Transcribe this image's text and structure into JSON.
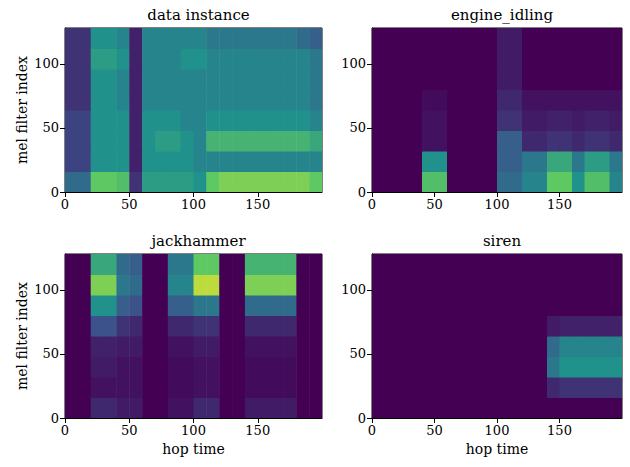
{
  "chart_data": [
    {
      "type": "heatmap",
      "title": "data instance",
      "ylabel": "mel filter index",
      "xlim": [
        0,
        200
      ],
      "ylim": [
        0,
        128
      ],
      "xticks": [
        0,
        50,
        100,
        150
      ],
      "yticks": [
        0,
        50,
        100
      ],
      "clim": [
        0,
        1
      ],
      "x_bins": [
        0,
        10,
        20,
        30,
        40,
        50,
        60,
        70,
        80,
        90,
        100,
        110,
        120,
        130,
        140,
        150,
        160,
        170,
        180,
        190,
        200
      ],
      "y_bins": [
        0,
        16,
        32,
        48,
        64,
        80,
        96,
        112,
        128
      ],
      "cells": [
        [
          0.35,
          0.35,
          0.75,
          0.75,
          0.7,
          0.15,
          0.55,
          0.55,
          0.55,
          0.55,
          0.5,
          0.75,
          0.8,
          0.8,
          0.8,
          0.8,
          0.8,
          0.8,
          0.8,
          0.75
        ],
        [
          0.2,
          0.2,
          0.5,
          0.5,
          0.5,
          0.1,
          0.5,
          0.5,
          0.5,
          0.5,
          0.45,
          0.45,
          0.45,
          0.45,
          0.45,
          0.45,
          0.45,
          0.45,
          0.45,
          0.45
        ],
        [
          0.2,
          0.2,
          0.5,
          0.5,
          0.5,
          0.1,
          0.5,
          0.55,
          0.55,
          0.5,
          0.45,
          0.65,
          0.65,
          0.65,
          0.65,
          0.65,
          0.65,
          0.65,
          0.65,
          0.6
        ],
        [
          0.2,
          0.2,
          0.5,
          0.5,
          0.5,
          0.1,
          0.5,
          0.5,
          0.5,
          0.45,
          0.45,
          0.5,
          0.5,
          0.5,
          0.5,
          0.5,
          0.5,
          0.5,
          0.5,
          0.45
        ],
        [
          0.15,
          0.15,
          0.5,
          0.5,
          0.45,
          0.1,
          0.45,
          0.45,
          0.45,
          0.45,
          0.45,
          0.45,
          0.45,
          0.45,
          0.45,
          0.45,
          0.45,
          0.45,
          0.45,
          0.4
        ],
        [
          0.15,
          0.15,
          0.5,
          0.5,
          0.45,
          0.1,
          0.45,
          0.45,
          0.45,
          0.45,
          0.45,
          0.45,
          0.45,
          0.45,
          0.45,
          0.45,
          0.45,
          0.45,
          0.45,
          0.4
        ],
        [
          0.15,
          0.15,
          0.55,
          0.55,
          0.5,
          0.1,
          0.45,
          0.45,
          0.45,
          0.5,
          0.5,
          0.45,
          0.45,
          0.45,
          0.45,
          0.45,
          0.45,
          0.45,
          0.45,
          0.4
        ],
        [
          0.15,
          0.15,
          0.5,
          0.5,
          0.45,
          0.1,
          0.45,
          0.45,
          0.45,
          0.45,
          0.45,
          0.4,
          0.4,
          0.4,
          0.4,
          0.4,
          0.4,
          0.4,
          0.35,
          0.3
        ]
      ]
    },
    {
      "type": "heatmap",
      "title": "engine_idling",
      "xlim": [
        0,
        200
      ],
      "ylim": [
        0,
        128
      ],
      "xticks": [
        0,
        50,
        100,
        150
      ],
      "yticks": [
        0,
        50,
        100
      ],
      "clim": [
        0,
        1
      ],
      "x_bins": [
        0,
        10,
        20,
        30,
        40,
        50,
        60,
        70,
        80,
        90,
        100,
        110,
        120,
        130,
        140,
        150,
        160,
        170,
        180,
        190,
        200
      ],
      "y_bins": [
        0,
        16,
        32,
        48,
        64,
        80,
        96,
        112,
        128
      ],
      "cells": [
        [
          0,
          0,
          0,
          0,
          0.7,
          0.7,
          0,
          0,
          0,
          0,
          0.35,
          0.35,
          0.45,
          0.45,
          0.75,
          0.75,
          0.5,
          0.7,
          0.7,
          0.45
        ],
        [
          0,
          0,
          0,
          0,
          0.5,
          0.5,
          0,
          0,
          0,
          0,
          0.3,
          0.3,
          0.4,
          0.4,
          0.6,
          0.6,
          0.4,
          0.55,
          0.55,
          0.4
        ],
        [
          0,
          0,
          0,
          0,
          0.05,
          0.05,
          0,
          0,
          0,
          0,
          0.3,
          0.3,
          0.12,
          0.12,
          0.15,
          0.15,
          0.12,
          0.15,
          0.15,
          0.12
        ],
        [
          0,
          0,
          0,
          0,
          0.05,
          0.05,
          0,
          0,
          0,
          0,
          0.15,
          0.15,
          0.08,
          0.08,
          0.1,
          0.1,
          0.08,
          0.1,
          0.1,
          0.08
        ],
        [
          0,
          0,
          0,
          0,
          0.03,
          0.03,
          0,
          0,
          0,
          0,
          0.12,
          0.12,
          0.05,
          0.05,
          0.05,
          0.05,
          0.05,
          0.05,
          0.05,
          0.05
        ],
        [
          0,
          0,
          0,
          0,
          0,
          0,
          0,
          0,
          0,
          0,
          0.08,
          0.08,
          0,
          0,
          0,
          0,
          0,
          0,
          0,
          0
        ],
        [
          0,
          0,
          0,
          0,
          0,
          0,
          0,
          0,
          0,
          0,
          0.08,
          0.08,
          0,
          0,
          0,
          0,
          0,
          0,
          0,
          0
        ],
        [
          0,
          0,
          0,
          0,
          0,
          0,
          0,
          0,
          0,
          0,
          0.08,
          0.08,
          0,
          0,
          0,
          0,
          0,
          0,
          0,
          0
        ]
      ]
    },
    {
      "type": "heatmap",
      "title": "jackhammer",
      "xlabel": "hop time",
      "ylabel": "mel filter index",
      "xlim": [
        0,
        200
      ],
      "ylim": [
        0,
        128
      ],
      "xticks": [
        0,
        50,
        100,
        150
      ],
      "yticks": [
        0,
        50,
        100
      ],
      "clim": [
        0,
        1
      ],
      "x_bins": [
        0,
        10,
        20,
        30,
        40,
        50,
        60,
        70,
        80,
        90,
        100,
        110,
        120,
        130,
        140,
        150,
        160,
        170,
        180,
        190,
        200
      ],
      "y_bins": [
        0,
        16,
        32,
        48,
        64,
        80,
        96,
        112,
        128
      ],
      "cells": [
        [
          0,
          0,
          0.12,
          0.12,
          0.08,
          0.08,
          0,
          0,
          0.05,
          0.05,
          0.12,
          0.12,
          0,
          0,
          0.08,
          0.08,
          0.08,
          0.08,
          0,
          0
        ],
        [
          0,
          0,
          0.05,
          0.05,
          0.05,
          0.05,
          0,
          0,
          0.03,
          0.03,
          0.05,
          0.05,
          0,
          0,
          0.03,
          0.03,
          0.03,
          0.03,
          0,
          0
        ],
        [
          0,
          0,
          0.08,
          0.08,
          0.05,
          0.05,
          0,
          0,
          0.03,
          0.03,
          0.05,
          0.05,
          0,
          0,
          0.03,
          0.03,
          0.03,
          0.03,
          0,
          0
        ],
        [
          0,
          0,
          0.1,
          0.1,
          0.08,
          0.08,
          0,
          0,
          0.05,
          0.05,
          0.08,
          0.08,
          0,
          0,
          0.05,
          0.05,
          0.05,
          0.05,
          0,
          0
        ],
        [
          0,
          0,
          0.25,
          0.25,
          0.15,
          0.12,
          0,
          0,
          0.12,
          0.12,
          0.15,
          0.15,
          0,
          0,
          0.12,
          0.12,
          0.12,
          0.12,
          0,
          0
        ],
        [
          0,
          0,
          0.5,
          0.5,
          0.3,
          0.25,
          0,
          0,
          0.3,
          0.3,
          0.4,
          0.4,
          0,
          0,
          0.35,
          0.35,
          0.35,
          0.35,
          0,
          0
        ],
        [
          0,
          0,
          0.8,
          0.8,
          0.4,
          0.35,
          0,
          0,
          0.45,
          0.45,
          0.9,
          0.9,
          0,
          0,
          0.8,
          0.8,
          0.8,
          0.8,
          0,
          0
        ],
        [
          0,
          0,
          0.6,
          0.6,
          0.35,
          0.3,
          0,
          0,
          0.4,
          0.4,
          0.75,
          0.75,
          0,
          0,
          0.65,
          0.65,
          0.65,
          0.65,
          0,
          0
        ]
      ]
    },
    {
      "type": "heatmap",
      "title": "siren",
      "xlabel": "hop time",
      "xlim": [
        0,
        200
      ],
      "ylim": [
        0,
        128
      ],
      "xticks": [
        0,
        50,
        100,
        150
      ],
      "yticks": [
        0,
        50,
        100
      ],
      "clim": [
        0,
        1
      ],
      "x_bins": [
        0,
        10,
        20,
        30,
        40,
        50,
        60,
        70,
        80,
        90,
        100,
        110,
        120,
        130,
        140,
        150,
        160,
        170,
        180,
        190,
        200
      ],
      "y_bins": [
        0,
        16,
        32,
        48,
        64,
        80,
        96,
        112,
        128
      ],
      "cells": [
        [
          0,
          0,
          0,
          0,
          0,
          0,
          0,
          0,
          0,
          0,
          0,
          0,
          0,
          0,
          0,
          0,
          0,
          0,
          0,
          0
        ],
        [
          0,
          0,
          0,
          0,
          0,
          0,
          0,
          0,
          0,
          0,
          0,
          0,
          0,
          0,
          0.12,
          0.15,
          0.15,
          0.15,
          0.15,
          0.15
        ],
        [
          0,
          0,
          0,
          0,
          0,
          0,
          0,
          0,
          0,
          0,
          0,
          0,
          0,
          0,
          0.4,
          0.5,
          0.5,
          0.5,
          0.5,
          0.5
        ],
        [
          0,
          0,
          0,
          0,
          0,
          0,
          0,
          0,
          0,
          0,
          0,
          0,
          0,
          0,
          0.35,
          0.45,
          0.45,
          0.45,
          0.45,
          0.45
        ],
        [
          0,
          0,
          0,
          0,
          0,
          0,
          0,
          0,
          0,
          0,
          0,
          0,
          0,
          0,
          0.08,
          0.1,
          0.1,
          0.1,
          0.1,
          0.1
        ],
        [
          0,
          0,
          0,
          0,
          0,
          0,
          0,
          0,
          0,
          0,
          0,
          0,
          0,
          0,
          0,
          0,
          0,
          0,
          0,
          0
        ],
        [
          0,
          0,
          0,
          0,
          0,
          0,
          0,
          0,
          0,
          0,
          0,
          0,
          0,
          0,
          0,
          0,
          0,
          0,
          0,
          0
        ],
        [
          0,
          0,
          0,
          0,
          0,
          0,
          0,
          0,
          0,
          0,
          0,
          0,
          0,
          0,
          0,
          0,
          0,
          0,
          0,
          0
        ]
      ]
    }
  ]
}
